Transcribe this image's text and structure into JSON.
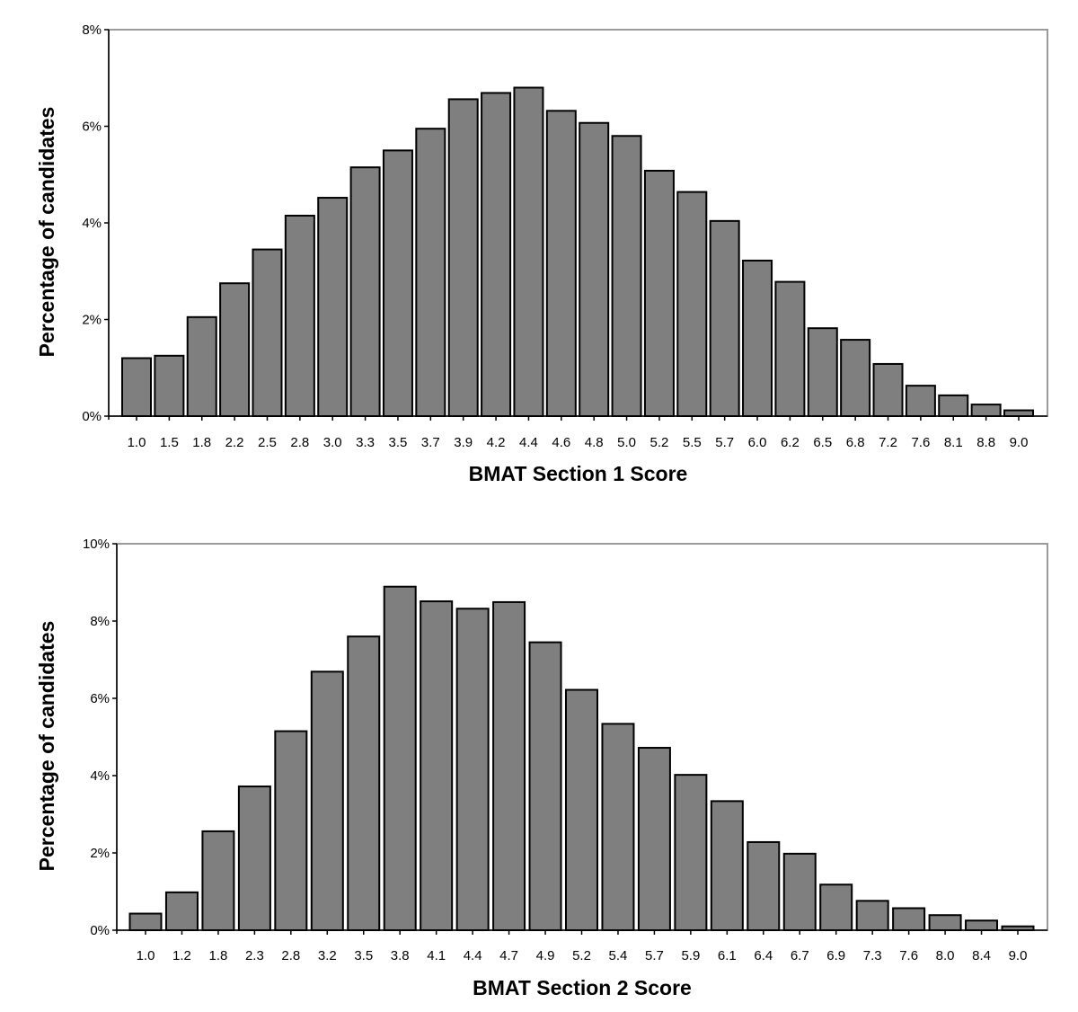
{
  "bar_color": "#7f7f7f",
  "bar_outline_color": "#000000",
  "frame_color": "#9a9a9a",
  "chart_data": [
    {
      "type": "bar",
      "xlabel": "BMAT Section 1 Score",
      "ylabel": "Percentage of candidates",
      "ylim": [
        0,
        8
      ],
      "yticks": [
        "0%",
        "2%",
        "4%",
        "6%",
        "8%"
      ],
      "grid": false,
      "categories": [
        "1.0",
        "1.5",
        "1.8",
        "2.2",
        "2.5",
        "2.8",
        "3.0",
        "3.3",
        "3.5",
        "3.7",
        "3.9",
        "4.2",
        "4.4",
        "4.6",
        "4.8",
        "5.0",
        "5.2",
        "5.5",
        "5.7",
        "6.0",
        "6.2",
        "6.5",
        "6.8",
        "7.2",
        "7.6",
        "8.1",
        "8.8",
        "9.0"
      ],
      "values": [
        1.2,
        1.25,
        2.05,
        2.75,
        3.45,
        4.15,
        4.52,
        5.15,
        5.5,
        5.95,
        6.56,
        6.69,
        6.8,
        6.32,
        6.07,
        5.8,
        5.08,
        4.64,
        4.04,
        3.22,
        2.78,
        1.82,
        1.58,
        1.08,
        0.63,
        0.43,
        0.24,
        0.12
      ]
    },
    {
      "type": "bar",
      "xlabel": "BMAT Section 2 Score",
      "ylabel": "Percentage of candidates",
      "ylim": [
        0,
        10
      ],
      "yticks": [
        "0%",
        "2%",
        "4%",
        "6%",
        "8%",
        "10%"
      ],
      "grid": false,
      "categories": [
        "1.0",
        "1.2",
        "1.8",
        "2.3",
        "2.8",
        "3.2",
        "3.5",
        "3.8",
        "4.1",
        "4.4",
        "4.7",
        "4.9",
        "5.2",
        "5.4",
        "5.7",
        "5.9",
        "6.1",
        "6.4",
        "6.7",
        "6.9",
        "7.3",
        "7.6",
        "8.0",
        "8.4",
        "9.0"
      ],
      "values": [
        0.43,
        0.98,
        2.56,
        3.72,
        5.15,
        6.69,
        7.6,
        8.89,
        8.51,
        8.32,
        8.49,
        7.45,
        6.22,
        5.34,
        4.72,
        4.02,
        3.34,
        2.28,
        1.98,
        1.18,
        0.76,
        0.57,
        0.39,
        0.25,
        0.1
      ]
    }
  ]
}
